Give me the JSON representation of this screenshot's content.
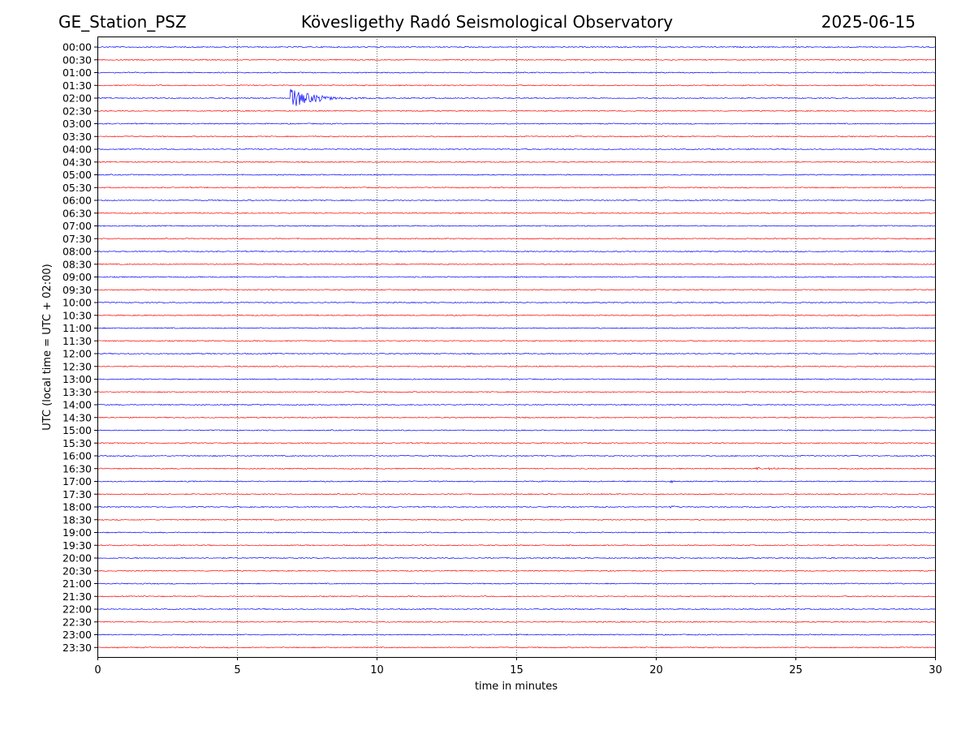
{
  "header": {
    "station": "GE_Station_PSZ",
    "observatory": "Kövesligethy Radó Seismological Observatory",
    "date": "2025-06-15"
  },
  "chart_data": {
    "type": "line",
    "title": "Kövesligethy Radó Seismological Observatory",
    "xlabel": "time in minutes",
    "ylabel": "UTC (local time = UTC + 02:00)",
    "xlim": [
      0,
      30
    ],
    "x_ticks": [
      "0",
      "5",
      "10",
      "15",
      "20",
      "25",
      "30"
    ],
    "x_tick_values": [
      0,
      5,
      10,
      15,
      20,
      25,
      30
    ],
    "grid": "vertical dotted at x ticks",
    "trace_colors": [
      "#0000ff",
      "#ff0000"
    ],
    "rows": [
      "00:00",
      "00:30",
      "01:00",
      "01:30",
      "02:00",
      "02:30",
      "03:00",
      "03:30",
      "04:00",
      "04:30",
      "05:00",
      "05:30",
      "06:00",
      "06:30",
      "07:00",
      "07:30",
      "08:00",
      "08:30",
      "09:00",
      "09:30",
      "10:00",
      "10:30",
      "11:00",
      "11:30",
      "12:00",
      "12:30",
      "13:00",
      "13:30",
      "14:00",
      "14:30",
      "15:00",
      "15:30",
      "16:00",
      "16:30",
      "17:00",
      "17:30",
      "18:00",
      "18:30",
      "19:00",
      "19:30",
      "20:00",
      "20:30",
      "21:00",
      "21:30",
      "22:00",
      "22:30",
      "23:00",
      "23:30"
    ],
    "events": [
      {
        "row": "02:00",
        "start_minute": 6.9,
        "end_minute": 10.5,
        "peak_amplitude": 1.0
      },
      {
        "row": "16:30",
        "start_minute": 23.5,
        "end_minute": 26.5,
        "peak_amplitude": 0.18
      },
      {
        "row": "17:00",
        "start_minute": 20.5,
        "end_minute": 21.0,
        "peak_amplitude": 0.2
      },
      {
        "row": "18:00",
        "start_minute": 20.5,
        "end_minute": 21.8,
        "peak_amplitude": 0.12
      }
    ]
  }
}
